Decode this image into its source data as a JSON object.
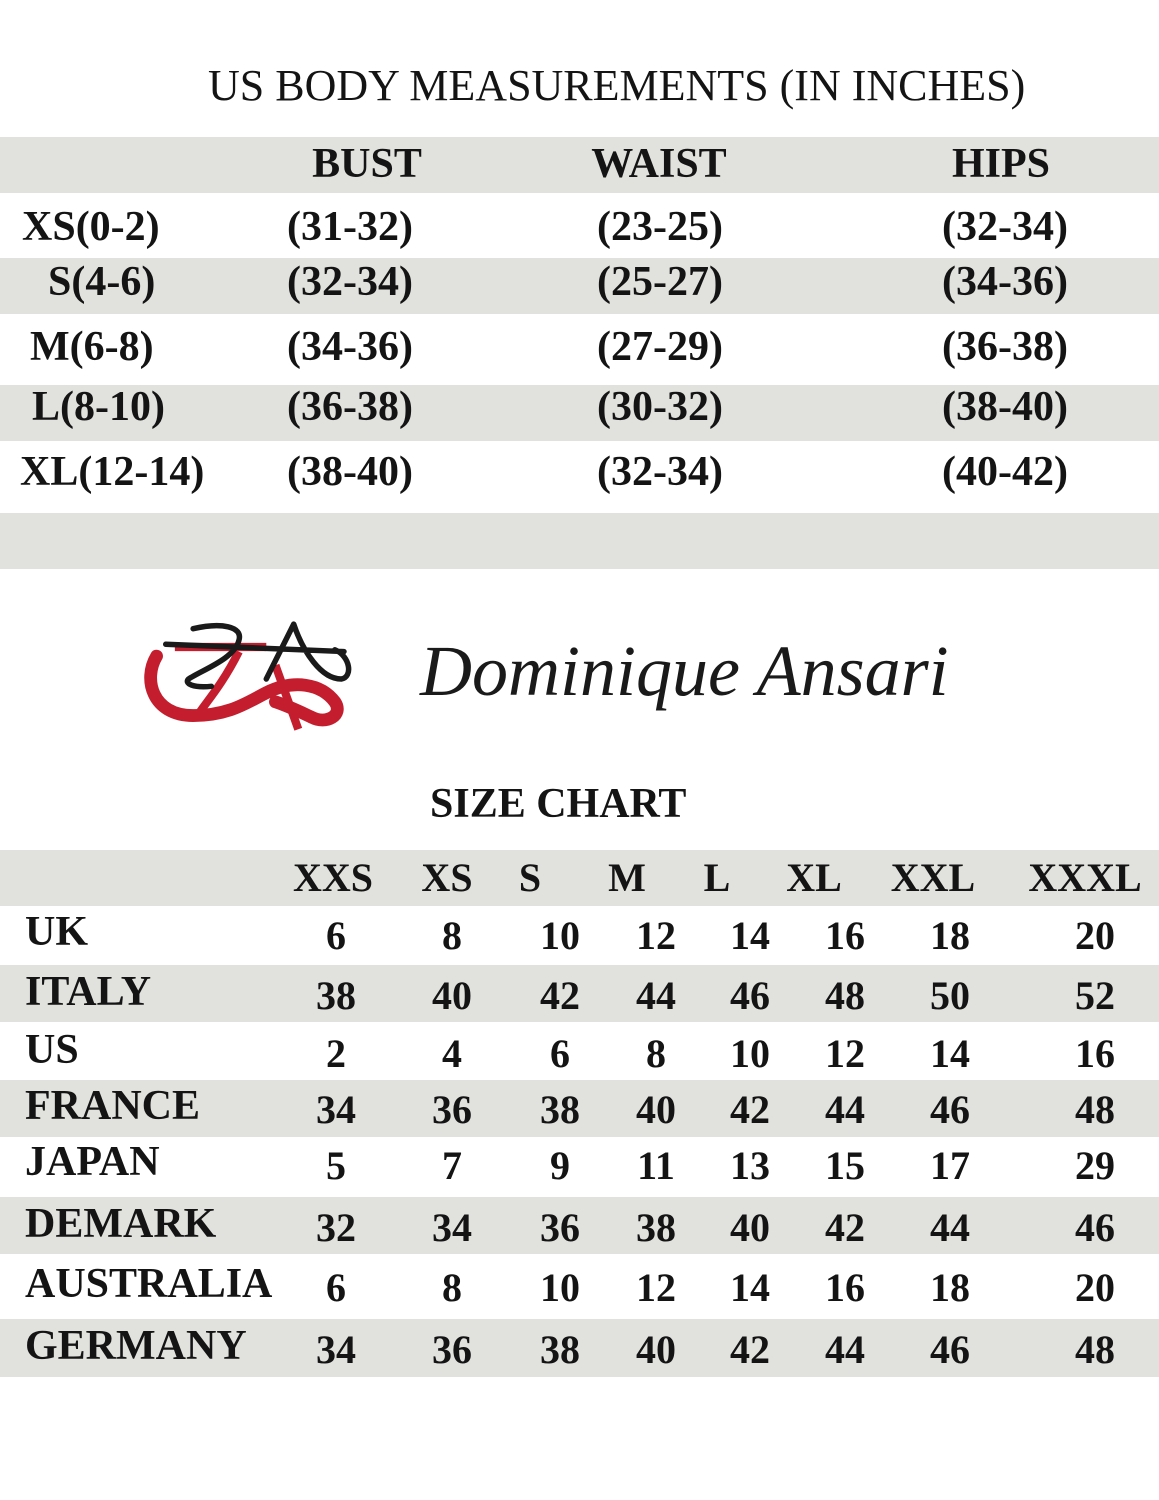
{
  "us_measurements": {
    "title": "US BODY MEASUREMENTS (IN INCHES)",
    "columns": [
      "BUST",
      "WAIST",
      "HIPS"
    ],
    "rows": [
      {
        "size": "XS(0-2)",
        "values": [
          "(31-32)",
          "(23-25)",
          "(32-34)"
        ]
      },
      {
        "size": "S(4-6)",
        "values": [
          "(32-34)",
          "(25-27)",
          "(34-36)"
        ]
      },
      {
        "size": "M(6-8)",
        "values": [
          "(34-36)",
          "(27-29)",
          "(36-38)"
        ]
      },
      {
        "size": "L(8-10)",
        "values": [
          "(36-38)",
          "(30-32)",
          "(38-40)"
        ]
      },
      {
        "size": "XL(12-14)",
        "values": [
          "(38-40)",
          "(32-34)",
          "(40-42)"
        ]
      }
    ]
  },
  "brand": {
    "name": "Dominique Ansari",
    "logo_text": "DA",
    "logo_colors": [
      "#c41e2e",
      "#1a1a1a"
    ]
  },
  "size_chart": {
    "title": "SIZE CHART",
    "columns": [
      "XXS",
      "XS",
      "S",
      "M",
      "L",
      "XL",
      "XXL",
      "XXXL"
    ],
    "rows": [
      {
        "country": "UK",
        "values": [
          "6",
          "8",
          "10",
          "12",
          "14",
          "16",
          "18",
          "20"
        ]
      },
      {
        "country": "ITALY",
        "values": [
          "38",
          "40",
          "42",
          "44",
          "46",
          "48",
          "50",
          "52"
        ]
      },
      {
        "country": "US",
        "values": [
          "2",
          "4",
          "6",
          "8",
          "10",
          "12",
          "14",
          "16"
        ]
      },
      {
        "country": "FRANCE",
        "values": [
          "34",
          "36",
          "38",
          "40",
          "42",
          "44",
          "46",
          "48"
        ]
      },
      {
        "country": "JAPAN",
        "values": [
          "5",
          "7",
          "9",
          "11",
          "13",
          "15",
          "17",
          "29"
        ]
      },
      {
        "country": "DEMARK",
        "values": [
          "32",
          "34",
          "36",
          "38",
          "40",
          "42",
          "44",
          "46"
        ]
      },
      {
        "country": "AUSTRALIA",
        "values": [
          "6",
          "8",
          "10",
          "12",
          "14",
          "16",
          "18",
          "20"
        ]
      },
      {
        "country": "GERMANY",
        "values": [
          "34",
          "36",
          "38",
          "40",
          "42",
          "44",
          "46",
          "48"
        ]
      }
    ]
  },
  "colors": {
    "band": "#e1e1dd",
    "text": "#141414",
    "logo_red": "#c41e2e"
  }
}
